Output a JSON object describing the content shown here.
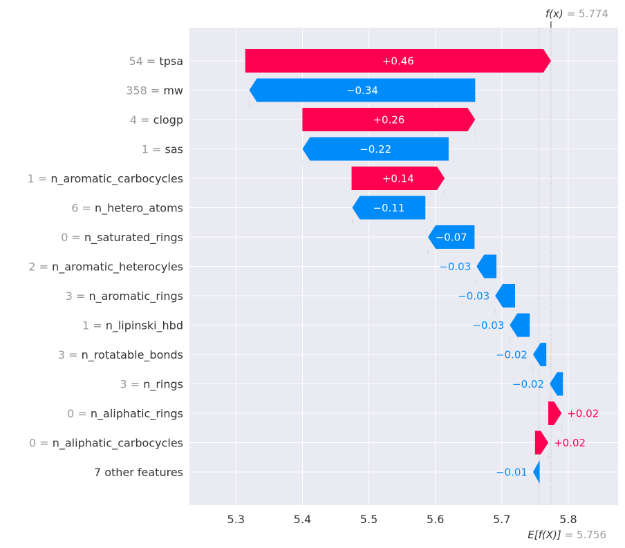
{
  "chart_data": {
    "type": "waterfall",
    "base_value": 5.756,
    "fx_value": 5.774,
    "fx_label": "f(x)",
    "fx_value_text": "= 5.774",
    "base_label": "E[f(X)]",
    "base_value_text": "= 5.756",
    "xlim": [
      5.23,
      5.875
    ],
    "x_ticks": [
      5.3,
      5.4,
      5.5,
      5.6,
      5.7,
      5.8
    ],
    "x_tick_labels": [
      "5.3",
      "5.4",
      "5.5",
      "5.6",
      "5.7",
      "5.8"
    ],
    "grid": true,
    "features": [
      {
        "value_text": "54 =",
        "name": "tpsa",
        "contribution": 0.46,
        "label": "+0.46"
      },
      {
        "value_text": "358 =",
        "name": "mw",
        "contribution": -0.34,
        "label": "−0.34"
      },
      {
        "value_text": "4 =",
        "name": "clogp",
        "contribution": 0.26,
        "label": "+0.26"
      },
      {
        "value_text": "1 =",
        "name": "sas",
        "contribution": -0.22,
        "label": "−0.22"
      },
      {
        "value_text": "1 =",
        "name": "n_aromatic_carbocycles",
        "contribution": 0.14,
        "label": "+0.14"
      },
      {
        "value_text": "6 =",
        "name": "n_hetero_atoms",
        "contribution": -0.11,
        "label": "−0.11"
      },
      {
        "value_text": "0 =",
        "name": "n_saturated_rings",
        "contribution": -0.07,
        "label": "−0.07"
      },
      {
        "value_text": "2 =",
        "name": "n_aromatic_heterocyles",
        "contribution": -0.03,
        "label": "−0.03"
      },
      {
        "value_text": "3 =",
        "name": "n_aromatic_rings",
        "contribution": -0.03,
        "label": "−0.03"
      },
      {
        "value_text": "1 =",
        "name": "n_lipinski_hbd",
        "contribution": -0.03,
        "label": "−0.03"
      },
      {
        "value_text": "3 =",
        "name": "n_rotatable_bonds",
        "contribution": -0.02,
        "label": "−0.02"
      },
      {
        "value_text": "3 =",
        "name": "n_rings",
        "contribution": -0.02,
        "label": "−0.02"
      },
      {
        "value_text": "0 =",
        "name": "n_aliphatic_rings",
        "contribution": 0.02,
        "label": "+0.02"
      },
      {
        "value_text": "0 =",
        "name": "n_aliphatic_carbocycles",
        "contribution": 0.02,
        "label": "+0.02"
      },
      {
        "value_text": "",
        "name": "7 other features",
        "contribution": -0.01,
        "label": "−0.01"
      }
    ],
    "start_values": [
      5.314,
      5.66,
      5.4,
      5.62,
      5.474,
      5.585,
      5.659,
      5.692,
      5.72,
      5.742,
      5.767,
      5.792,
      5.77,
      5.75,
      5.757
    ],
    "colors": {
      "positive": "#ff0051",
      "negative": "#008bfb",
      "background": "#eaeaf2",
      "grid": "#ffffff"
    }
  }
}
